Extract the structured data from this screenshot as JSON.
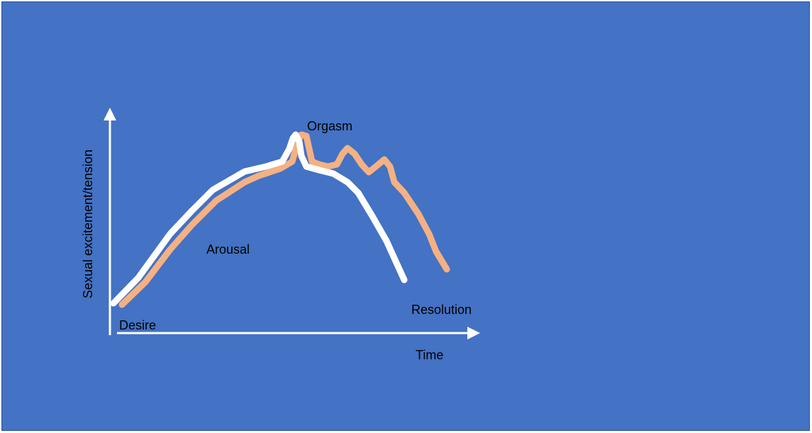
{
  "diagram": {
    "y_axis_label": "Sexual excitement/tension",
    "x_axis_label": "Time",
    "phases": {
      "desire": "Desire",
      "arousal": "Arousal",
      "orgasm": "Orgasm",
      "resolution": "Resolution"
    },
    "colors": {
      "background": "#4472c4",
      "axes": "#ffffff",
      "curve_primary": "#ffffff",
      "curve_secondary": "#f4b183",
      "text": "#000000"
    }
  }
}
